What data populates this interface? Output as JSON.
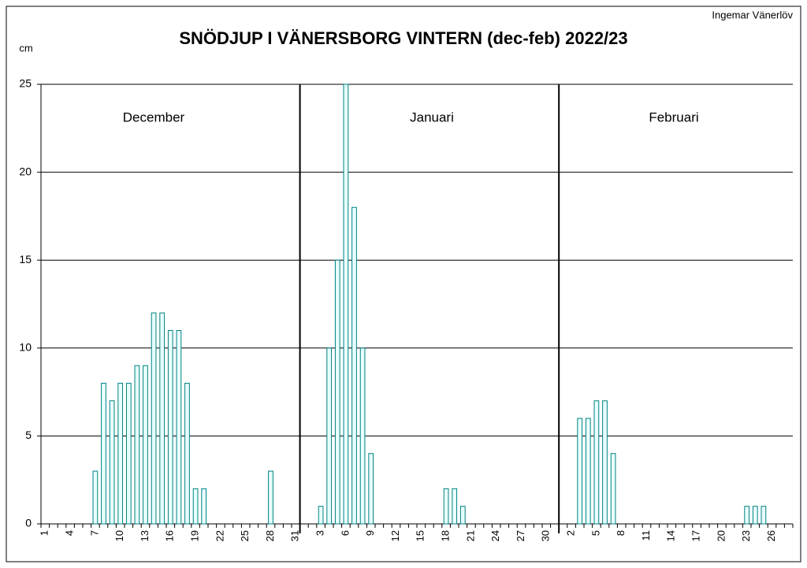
{
  "chart_data": {
    "type": "bar",
    "title": "SNÖDJUP I VÄNERSBORG  VINTERN (dec-feb) 2022/23",
    "y_label": "cm",
    "credit": "Ingemar Vänerlöv",
    "annotations": [
      "December",
      "Januari",
      "Februari"
    ],
    "categories": [
      "1",
      null,
      null,
      "4",
      null,
      null,
      "7",
      null,
      null,
      "10",
      null,
      null,
      "13",
      null,
      null,
      "16",
      null,
      null,
      "19",
      null,
      null,
      "22",
      null,
      null,
      "25",
      null,
      null,
      "28",
      null,
      null,
      "31",
      null,
      null,
      "3",
      null,
      null,
      "6",
      null,
      null,
      "9",
      null,
      null,
      "12",
      null,
      null,
      "15",
      null,
      null,
      "18",
      null,
      null,
      "21",
      null,
      null,
      "24",
      null,
      null,
      "27",
      null,
      null,
      "30",
      null,
      null,
      "2",
      null,
      null,
      "5",
      null,
      null,
      "8",
      null,
      null,
      "11",
      null,
      null,
      "14",
      null,
      null,
      "17",
      null,
      null,
      "20",
      null,
      null,
      "23",
      null,
      null,
      "26",
      null,
      null
    ],
    "values": [
      0,
      0,
      0,
      0,
      0,
      0,
      3,
      8,
      7,
      8,
      8,
      9,
      9,
      12,
      12,
      11,
      11,
      8,
      2,
      2,
      0,
      0,
      0,
      0,
      0,
      0,
      0,
      3,
      0,
      0,
      0,
      0,
      0,
      1,
      10,
      15,
      25,
      18,
      10,
      4,
      0,
      0,
      0,
      0,
      0,
      0,
      0,
      0,
      2,
      2,
      1,
      0,
      0,
      0,
      0,
      0,
      0,
      0,
      0,
      0,
      0,
      0,
      0,
      0,
      6,
      6,
      7,
      7,
      4,
      0,
      0,
      0,
      0,
      0,
      0,
      0,
      0,
      0,
      0,
      0,
      0,
      0,
      0,
      0,
      1,
      1,
      1,
      0,
      0,
      0
    ],
    "color": "#008080",
    "ylim": [
      0,
      25
    ],
    "yticks": [
      0,
      5,
      10,
      15,
      20,
      25
    ],
    "grid": true
  }
}
